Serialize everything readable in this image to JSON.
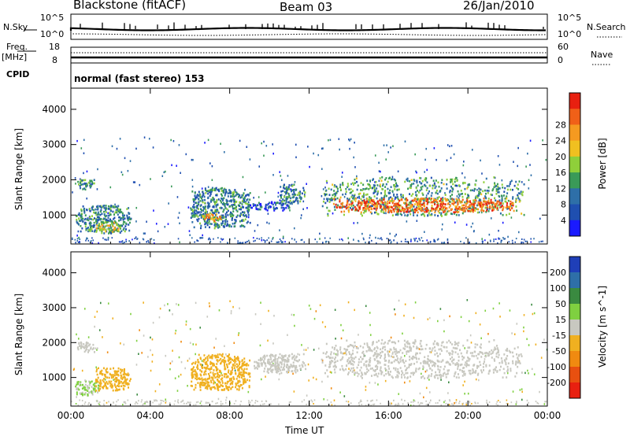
{
  "header": {
    "radar": "Blackstone (fitACF)",
    "beam": "Beam 03",
    "date": "26/Jan/2010"
  },
  "top_strip": {
    "nsky_label": "N.Sky",
    "nsky_ticks": [
      "10^5",
      "10^0"
    ],
    "nsearch_label": "N.Search",
    "nsearch_ticks": [
      "10^5",
      "10^0"
    ],
    "freq_label": "Freq.",
    "freq_unit": "[MHz]",
    "freq_ticks": [
      "18",
      "8"
    ],
    "nave_label": "Nave",
    "nave_ticks": [
      "60",
      "0"
    ],
    "cpid_label": "CPID",
    "cpid_value": "normal (fast stereo) 153"
  },
  "colors": {
    "power": [
      "#1a1aff",
      "#1f4fb0",
      "#2e6fa8",
      "#3a9a58",
      "#8fcf3a",
      "#f0c020",
      "#f59a20",
      "#f06018",
      "#e82010"
    ],
    "velocity": [
      "#1f3fb8",
      "#2e6fa8",
      "#3a8a40",
      "#7fd040",
      "#c8c8c0",
      "#f0b020",
      "#f08a10",
      "#e85010",
      "#e82010"
    ]
  },
  "chart_data": [
    {
      "type": "heatmap",
      "title": "",
      "xlabel": "",
      "ylabel": "Slant Range [km]",
      "x_ticks": [
        "00:00",
        "04:00",
        "08:00",
        "12:00",
        "16:00",
        "20:00",
        "00:00"
      ],
      "y_ticks": [
        1000,
        2000,
        3000,
        4000
      ],
      "ylim": [
        180,
        4600
      ],
      "colorbar_label": "Power [dB]",
      "colorbar_ticks": [
        4,
        8,
        12,
        16,
        20,
        24,
        28
      ],
      "regions": [
        {
          "t": [
            0.2,
            1.2
          ],
          "r": [
            1750,
            2050
          ],
          "value_dB": 12
        },
        {
          "t": [
            0.2,
            3.0
          ],
          "r": [
            500,
            1300
          ],
          "value_dB": 10
        },
        {
          "t": [
            1.2,
            2.5
          ],
          "r": [
            550,
            850
          ],
          "value_dB": 18
        },
        {
          "t": [
            6.0,
            9.0
          ],
          "r": [
            650,
            1800
          ],
          "value_dB": 10
        },
        {
          "t": [
            6.6,
            7.6
          ],
          "r": [
            850,
            1100
          ],
          "value_dB": 22
        },
        {
          "t": [
            9.0,
            11.0
          ],
          "r": [
            1150,
            1400
          ],
          "value_dB": 6
        },
        {
          "t": [
            10.5,
            11.8
          ],
          "r": [
            1350,
            1900
          ],
          "value_dB": 10
        },
        {
          "t": [
            12.6,
            22.8
          ],
          "r": [
            1000,
            2100
          ],
          "value_dB": 12
        },
        {
          "t": [
            13.2,
            22.4
          ],
          "r": [
            1100,
            1500
          ],
          "value_dB": 26
        }
      ]
    },
    {
      "type": "heatmap",
      "title": "",
      "xlabel": "Time UT",
      "ylabel": "Slant Range [km]",
      "x_ticks": [
        "00:00",
        "04:00",
        "08:00",
        "12:00",
        "16:00",
        "20:00",
        "00:00"
      ],
      "y_ticks": [
        1000,
        2000,
        3000,
        4000
      ],
      "ylim": [
        180,
        4600
      ],
      "colorbar_label": "Velocity [m s^-1]",
      "colorbar_ticks": [
        200,
        100,
        50,
        15,
        -15,
        -50,
        -100,
        -200
      ],
      "regions": [
        {
          "t": [
            0.2,
            1.2
          ],
          "r": [
            1750,
            2050
          ],
          "value_ms": 0
        },
        {
          "t": [
            0.2,
            1.4
          ],
          "r": [
            500,
            950
          ],
          "value_ms": 30
        },
        {
          "t": [
            1.2,
            3.0
          ],
          "r": [
            650,
            1300
          ],
          "value_ms": -50
        },
        {
          "t": [
            6.0,
            9.0
          ],
          "r": [
            650,
            1700
          ],
          "value_ms": -60
        },
        {
          "t": [
            9.2,
            11.8
          ],
          "r": [
            1150,
            1700
          ],
          "value_ms": 0
        },
        {
          "t": [
            12.6,
            22.8
          ],
          "r": [
            1000,
            2100
          ],
          "value_ms": 0
        }
      ]
    }
  ]
}
